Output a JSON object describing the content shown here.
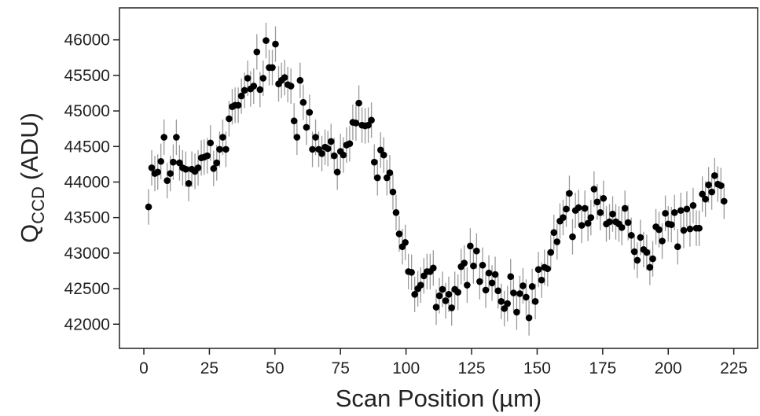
{
  "chart_data": {
    "type": "scatter",
    "x_label": "Scan Position (µm)",
    "y_label": {
      "main": "Q",
      "subscript": "CCD",
      "unit": "(ADU)"
    },
    "xlim": [
      -9.3,
      234.1
    ],
    "ylim": [
      41660,
      46450
    ],
    "xticks": [
      0,
      25,
      50,
      75,
      100,
      125,
      150,
      175,
      200,
      225
    ],
    "yticks": [
      42000,
      42500,
      43000,
      43500,
      44000,
      44500,
      45000,
      45500,
      46000
    ],
    "grid": false,
    "series": [
      {
        "color": "#000000",
        "error_color": "#9a9a9a",
        "yerr": 250,
        "x": [
          1.8,
          3.0,
          4.2,
          5.3,
          6.5,
          7.7,
          8.9,
          10.1,
          11.2,
          12.4,
          13.6,
          14.8,
          16.0,
          17.1,
          18.3,
          19.5,
          20.7,
          21.9,
          23.0,
          24.2,
          25.4,
          26.6,
          27.8,
          28.9,
          30.1,
          31.3,
          32.5,
          33.7,
          34.8,
          36.0,
          37.2,
          38.4,
          39.6,
          40.7,
          41.9,
          43.1,
          44.3,
          45.5,
          46.6,
          47.8,
          49.0,
          50.2,
          51.4,
          52.5,
          53.7,
          54.9,
          56.1,
          57.3,
          58.4,
          59.6,
          60.8,
          62.0,
          63.2,
          64.3,
          65.5,
          66.7,
          67.9,
          69.1,
          70.2,
          71.4,
          72.6,
          73.8,
          75.0,
          76.1,
          77.3,
          78.5,
          79.7,
          80.9,
          82.0,
          83.2,
          84.4,
          85.6,
          86.8,
          87.9,
          89.1,
          90.3,
          91.5,
          92.7,
          93.8,
          95.0,
          96.2,
          97.4,
          98.6,
          99.7,
          100.9,
          102.1,
          103.3,
          104.5,
          105.6,
          106.8,
          108.0,
          109.2,
          110.4,
          111.5,
          112.7,
          113.9,
          115.1,
          116.3,
          117.4,
          118.6,
          119.8,
          121.0,
          122.2,
          123.3,
          124.5,
          125.7,
          126.9,
          128.1,
          129.2,
          130.4,
          131.6,
          132.8,
          134.0,
          135.1,
          136.3,
          137.5,
          138.7,
          139.9,
          141.0,
          142.2,
          143.4,
          144.6,
          145.8,
          146.9,
          148.1,
          149.3,
          150.5,
          151.7,
          152.8,
          154.0,
          155.2,
          156.4,
          157.6,
          158.7,
          159.9,
          161.1,
          162.3,
          163.5,
          164.6,
          165.8,
          167.0,
          168.2,
          169.4,
          170.5,
          171.7,
          172.9,
          174.1,
          175.3,
          176.4,
          177.6,
          178.8,
          180.0,
          181.2,
          182.3,
          183.5,
          184.7,
          185.9,
          187.1,
          188.2,
          189.4,
          190.6,
          191.8,
          193.0,
          194.1,
          195.3,
          196.5,
          197.7,
          198.9,
          200.0,
          201.2,
          202.4,
          203.6,
          204.8,
          205.9,
          207.1,
          208.3,
          209.5,
          210.7,
          211.8,
          213.0,
          214.2,
          215.4,
          216.6,
          217.7,
          218.9,
          220.1,
          221.3
        ],
        "values": [
          43650,
          44200,
          44120,
          44140,
          44290,
          44630,
          44020,
          44120,
          44280,
          44630,
          44270,
          44200,
          44180,
          43980,
          44180,
          44150,
          44200,
          44340,
          44350,
          44370,
          44550,
          44190,
          44270,
          44460,
          44630,
          44460,
          44890,
          45060,
          45080,
          45080,
          45210,
          45290,
          45460,
          45310,
          45350,
          45830,
          45300,
          45460,
          45990,
          45610,
          45610,
          45940,
          45380,
          45430,
          45470,
          45370,
          45350,
          44860,
          44630,
          45430,
          45120,
          44770,
          44980,
          44460,
          44630,
          44460,
          44400,
          44490,
          44470,
          44570,
          44370,
          44140,
          44430,
          44380,
          44520,
          44540,
          44840,
          44830,
          45110,
          44800,
          44790,
          44800,
          44870,
          44280,
          44060,
          44450,
          44380,
          44060,
          44130,
          43860,
          43570,
          43270,
          43090,
          43150,
          42740,
          42730,
          42420,
          42500,
          42550,
          42680,
          42740,
          42740,
          42790,
          42240,
          42400,
          42490,
          42330,
          42420,
          42230,
          42490,
          42450,
          42810,
          42860,
          42550,
          43100,
          42820,
          43030,
          42600,
          42830,
          42480,
          42720,
          42580,
          42700,
          42470,
          42320,
          42220,
          42290,
          42670,
          42440,
          42170,
          42430,
          42540,
          42380,
          42090,
          42530,
          42320,
          42770,
          42620,
          42800,
          42780,
          43010,
          43290,
          43160,
          43450,
          43500,
          43620,
          43840,
          43230,
          43600,
          43640,
          43390,
          43630,
          43420,
          43500,
          43900,
          43720,
          43570,
          43770,
          43410,
          43440,
          43550,
          43440,
          43410,
          43360,
          43630,
          43430,
          43250,
          43020,
          42900,
          43220,
          43050,
          43010,
          42800,
          42920,
          43370,
          43330,
          43170,
          43560,
          43410,
          43400,
          43570,
          43090,
          43600,
          43320,
          43620,
          43340,
          43670,
          43350,
          43350,
          43830,
          43760,
          43960,
          43860,
          44090,
          43970,
          43950,
          43730
        ]
      }
    ]
  }
}
